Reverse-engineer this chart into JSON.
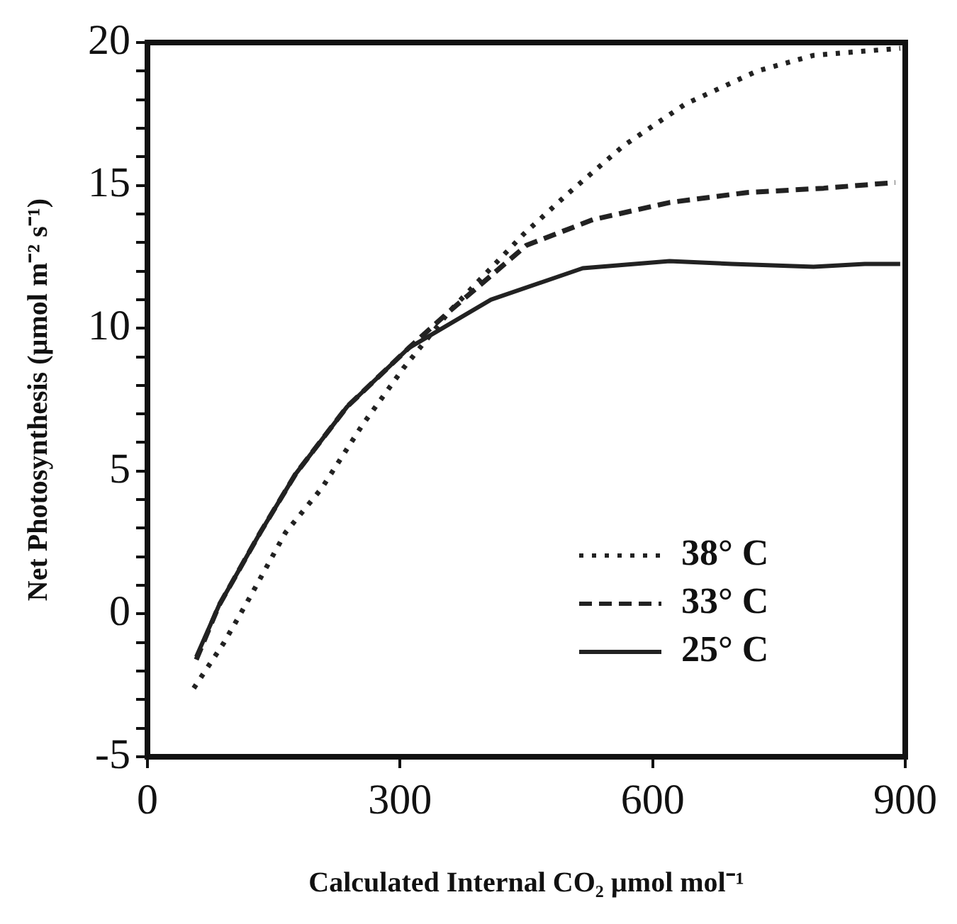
{
  "chart_data": {
    "type": "line",
    "xlabel": "Calculated Internal CO₂ µmol mol⁻¹",
    "ylabel": "Net Photosynthesis (µmol m⁻² s⁻¹)",
    "xlim": [
      0,
      900
    ],
    "xticks": [
      0,
      300,
      600,
      900
    ],
    "ylim": [
      -5,
      20
    ],
    "yticks": [
      -5,
      {
        "value": -4,
        "label": null
      },
      {
        "value": -3,
        "label": null
      },
      {
        "value": -2,
        "label": null
      },
      {
        "value": -1,
        "label": null
      },
      0,
      {
        "value": 1,
        "label": null
      },
      {
        "value": 2,
        "label": null
      },
      {
        "value": 3,
        "label": null
      },
      {
        "value": 4,
        "label": null
      },
      5,
      {
        "value": 6,
        "label": null
      },
      {
        "value": 7,
        "label": null
      },
      {
        "value": 8,
        "label": null
      },
      {
        "value": 9,
        "label": null
      },
      10,
      {
        "value": 11,
        "label": null
      },
      {
        "value": 12,
        "label": null
      },
      {
        "value": 13,
        "label": null
      },
      {
        "value": 14,
        "label": null
      },
      15,
      {
        "value": 16,
        "label": null
      },
      {
        "value": 17,
        "label": null
      },
      {
        "value": 18,
        "label": null
      },
      {
        "value": 19,
        "label": null
      },
      20
    ],
    "grid": false,
    "legend": "bottom right",
    "marker": "none",
    "series": [
      {
        "name": "38° C",
        "color": "#222222",
        "line_style": "dotted",
        "x": [
          55,
          91,
          122,
          164,
          207,
          255,
          304,
          359,
          447,
          499,
          566,
          639,
          724,
          791,
          894
        ],
        "values": [
          -2.6,
          -1.0,
          0.6,
          2.85,
          4.4,
          6.6,
          8.6,
          10.6,
          13.3,
          14.7,
          16.4,
          17.85,
          19.0,
          19.55,
          19.8
        ]
      },
      {
        "name": "33° C",
        "color": "#222222",
        "line_style": "dashed",
        "x": [
          58,
          85,
          134,
          176,
          237,
          310,
          359,
          450,
          529,
          620,
          712,
          803,
          888
        ],
        "values": [
          -1.6,
          0.3,
          2.85,
          4.9,
          7.25,
          9.3,
          10.6,
          12.9,
          13.8,
          14.4,
          14.75,
          14.9,
          15.1
        ]
      },
      {
        "name": "25° C",
        "color": "#222222",
        "line_style": "solid",
        "x": [
          58,
          85,
          134,
          176,
          237,
          310,
          408,
          517,
          620,
          694,
          791,
          852,
          894
        ],
        "values": [
          -1.5,
          0.3,
          2.85,
          4.9,
          7.25,
          9.3,
          11.0,
          12.1,
          12.35,
          12.25,
          12.15,
          12.25,
          12.25
        ]
      }
    ]
  }
}
